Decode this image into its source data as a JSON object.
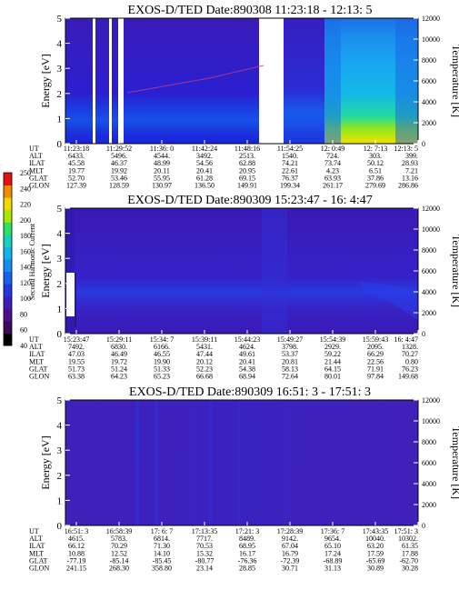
{
  "colorbar": {
    "label": "Second Harmonic Current",
    "ticks": [
      "40",
      "60",
      "80",
      "100",
      "120",
      "140",
      "160",
      "180",
      "200",
      "220",
      "240",
      "250"
    ]
  },
  "chart_data": [
    {
      "type": "heatmap",
      "title": "EXOS-D/TED   Date:890308   11:23:18 - 12:13: 5",
      "ylabel": "Energy [eV]",
      "y2label": "Temperature [K]",
      "ylim": [
        0,
        5
      ],
      "y2lim": [
        0,
        12000
      ],
      "yticks": [
        "0",
        "1",
        "2",
        "3",
        "4",
        "5"
      ],
      "y2ticks": [
        "0",
        "2000",
        "4000",
        "6000",
        "8000",
        "10000",
        "12000"
      ],
      "row_labels": [
        "UT",
        "ALT",
        "ILAT",
        "MLT",
        "GLAT",
        "GLON"
      ],
      "columns": [
        [
          "11:23:18",
          "6433.",
          "45.58",
          "19.77",
          "52.70",
          "127.39"
        ],
        [
          "11:29:52",
          "5496.",
          "46.37",
          "19.92",
          "53.46",
          "128.59"
        ],
        [
          "11:36: 0",
          "4544.",
          "48.99",
          "20.11",
          "55.95",
          "130.97"
        ],
        [
          "11:42:24",
          "3492.",
          "54.56",
          "20.41",
          "61.28",
          "136.50"
        ],
        [
          "11:48:16",
          "2513.",
          "62.88",
          "20.95",
          "69.15",
          "149.91"
        ],
        [
          "11:54:25",
          "1540.",
          "74.21",
          "22.61",
          "76.37",
          "199.34"
        ],
        [
          "12: 0:49",
          "724.",
          "73.74",
          "4.23",
          "63.93",
          "261.17"
        ],
        [
          "12: 7:13",
          "303.",
          "50.12",
          "6.51",
          "37.86",
          "279.69"
        ],
        [
          "12:13: 5",
          "399.",
          "28.93",
          "7.21",
          "13.16",
          "286.86"
        ]
      ]
    },
    {
      "type": "heatmap",
      "title": "EXOS-D/TED   Date:890309   15:23:47 - 16: 4:47",
      "ylabel": "Energy [eV]",
      "y2label": "Temperature [K]",
      "ylim": [
        0,
        5
      ],
      "y2lim": [
        0,
        12000
      ],
      "yticks": [
        "0",
        "1",
        "2",
        "3",
        "4",
        "5"
      ],
      "y2ticks": [
        "0",
        "2000",
        "4000",
        "6000",
        "8000",
        "10000",
        "12000"
      ],
      "row_labels": [
        "UT",
        "ALT",
        "ILAT",
        "MLT",
        "GLAT",
        "GLON"
      ],
      "columns": [
        [
          "15:23:47",
          "7492.",
          "47.03",
          "19.55",
          "51.73",
          "63.38"
        ],
        [
          "15:29:11",
          "6830.",
          "46.49",
          "19.72",
          "51.24",
          "64.23"
        ],
        [
          "15:34: 7",
          "6166.",
          "46.55",
          "19.90",
          "51.33",
          "65.23"
        ],
        [
          "15:39:11",
          "5431.",
          "47.44",
          "20.12",
          "52.23",
          "66.68"
        ],
        [
          "15:44:23",
          "4624.",
          "49.61",
          "20.41",
          "54.38",
          "68.94"
        ],
        [
          "15:49:27",
          "3798.",
          "53.37",
          "20.81",
          "58.13",
          "72.64"
        ],
        [
          "15:54:39",
          "2929.",
          "59.22",
          "21.44",
          "64.15",
          "80.01"
        ],
        [
          "15:59:43",
          "2095.",
          "66.29",
          "22.56",
          "71.91",
          "97.84"
        ],
        [
          "16: 4:47",
          "1328.",
          "70.27",
          "0.80",
          "76.23",
          "149.68"
        ]
      ]
    },
    {
      "type": "heatmap",
      "title": "EXOS-D/TED   Date:890309   16:51: 3 - 17:51: 3",
      "ylabel": "Energy [eV]",
      "y2label": "Temperature [K]",
      "ylim": [
        0,
        5
      ],
      "y2lim": [
        0,
        12000
      ],
      "yticks": [
        "0",
        "1",
        "2",
        "3",
        "4",
        "5"
      ],
      "y2ticks": [
        "0",
        "2000",
        "4000",
        "6000",
        "8000",
        "10000",
        "12000"
      ],
      "row_labels": [
        "UT",
        "ALT",
        "ILAT",
        "MLT",
        "GLAT",
        "GLON"
      ],
      "columns": [
        [
          "16:51: 3",
          "4615.",
          "66.12",
          "10.88",
          "-77.19",
          "241.15"
        ],
        [
          "16:58:39",
          "5783.",
          "70.29",
          "12.52",
          "-85.14",
          "268.30"
        ],
        [
          "17: 6: 7",
          "6814.",
          "71.30",
          "14.10",
          "-85.45",
          "358.80"
        ],
        [
          "17:13:35",
          "7717.",
          "70.53",
          "15.32",
          "-80.77",
          "23.14"
        ],
        [
          "17:21: 3",
          "8489.",
          "68.95",
          "16.17",
          "-76.36",
          "28.85"
        ],
        [
          "17:28:39",
          "9142.",
          "67.04",
          "16.79",
          "-72.39",
          "30.71"
        ],
        [
          "17:36: 7",
          "9654.",
          "65.10",
          "17.24",
          "-68.89",
          "31.13"
        ],
        [
          "17:43:35",
          "10040.",
          "63.20",
          "17.59",
          "-65.69",
          "30.89"
        ],
        [
          "17:51: 3",
          "10302.",
          "61.35",
          "17.88",
          "-62.70",
          "30.28"
        ]
      ]
    }
  ]
}
